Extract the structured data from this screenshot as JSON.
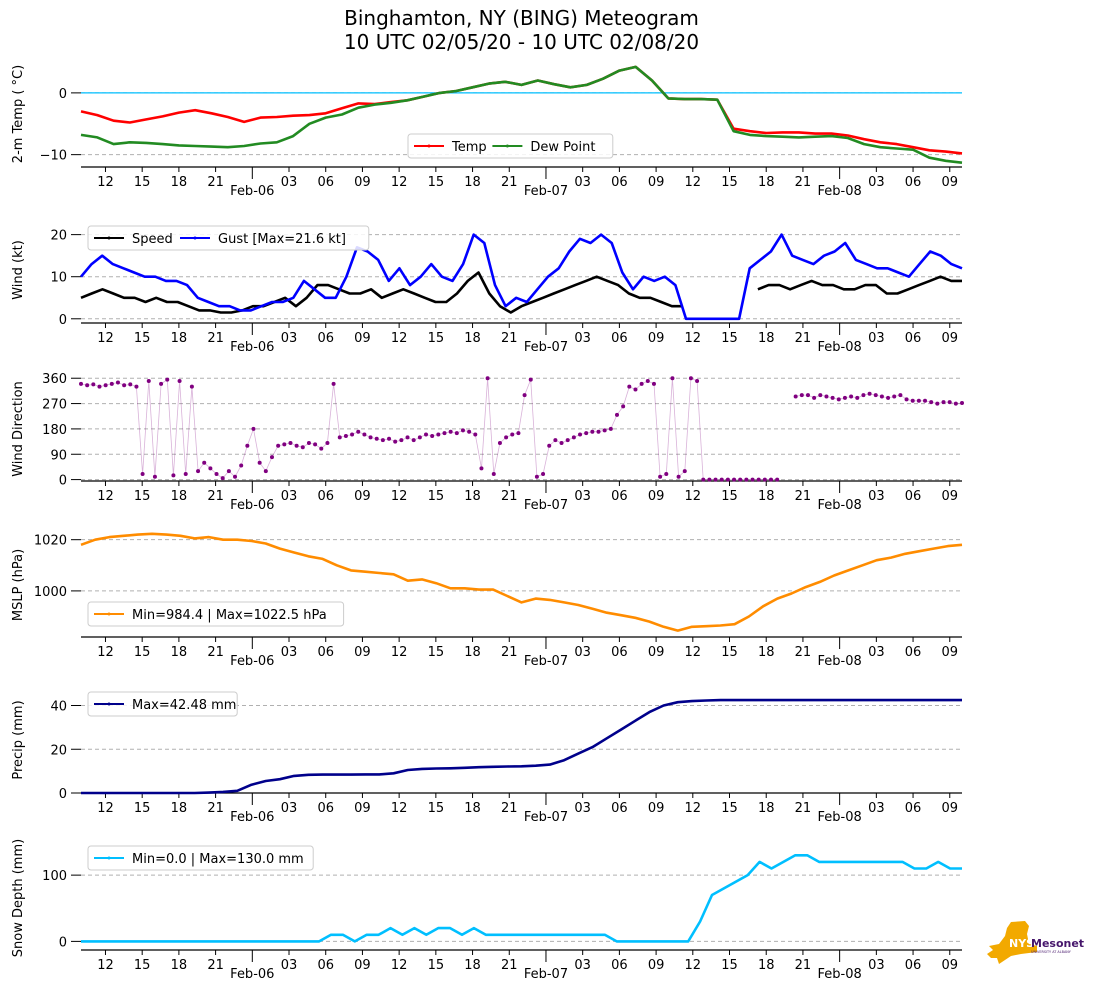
{
  "title": {
    "line1": "Binghamton, NY (BING) Meteogram",
    "line2": "10 UTC 02/05/20 - 10 UTC 02/08/20"
  },
  "logo": {
    "text_nys": "NYS",
    "text_mesonet": "Mesonet",
    "subtext": "UNIVERSITY AT ALBANY",
    "colors": {
      "state": "#f2a900",
      "brand": "#46166b"
    }
  },
  "chart_data": [
    {
      "id": "temp",
      "type": "line",
      "ylabel": "2-m Temp ( °C)",
      "ylim": [
        -12,
        5
      ],
      "yticks": [
        0,
        -10
      ],
      "grid": "horizontal-dashed",
      "reference_line": {
        "value": 0,
        "color": "#00bfff"
      },
      "legend": {
        "placement": "lower-center",
        "ncol": 2
      },
      "xlabel_hours_start": "10 UTC 02/05/20",
      "x_tick_labels": [
        "12",
        "15",
        "18",
        "21",
        "Feb-06",
        "03",
        "06",
        "09",
        "12",
        "15",
        "18",
        "21",
        "Feb-07",
        "03",
        "06",
        "09",
        "12",
        "15",
        "18",
        "21",
        "Feb-08",
        "03",
        "06",
        "09"
      ],
      "x_hours": [
        0,
        2,
        4,
        6,
        8,
        10,
        12,
        14,
        16,
        18,
        20,
        22,
        24,
        26,
        28,
        30,
        32,
        34,
        36,
        38,
        40,
        42,
        44,
        46,
        48,
        50,
        52,
        54,
        56,
        58,
        60,
        62,
        64,
        66,
        68,
        70,
        72
      ],
      "series": [
        {
          "name": "Temp",
          "color": "#ff0000",
          "values": [
            -3.0,
            -3.6,
            -4.5,
            -4.8,
            -4.3,
            -3.8,
            -3.2,
            -2.8,
            -3.3,
            -3.9,
            -4.7,
            -4.0,
            -3.9,
            -3.7,
            -3.6,
            -3.3,
            -2.5,
            -1.7,
            -1.8,
            -1.5,
            -1.2,
            -0.6,
            0.0,
            0.3,
            0.9,
            1.5,
            1.8,
            1.3,
            2.0,
            1.4,
            0.9,
            1.3,
            2.3,
            3.6,
            4.2,
            2.0,
            -0.9,
            -1.0,
            -1.0,
            -1.1,
            -5.8,
            -6.2,
            -6.5,
            -6.4,
            -6.4,
            -6.6,
            -6.6,
            -6.9,
            -7.5,
            -8.0,
            -8.3,
            -8.8,
            -9.3,
            -9.5,
            -9.8
          ]
        },
        {
          "name": "Dew Point",
          "color": "#228b22",
          "values": [
            -6.8,
            -7.2,
            -8.3,
            -8.0,
            -8.1,
            -8.3,
            -8.5,
            -8.6,
            -8.7,
            -8.8,
            -8.6,
            -8.2,
            -8.0,
            -7.0,
            -5.0,
            -4.0,
            -3.5,
            -2.4,
            -1.9,
            -1.6,
            -1.2,
            -0.6,
            0.0,
            0.3,
            0.9,
            1.5,
            1.8,
            1.3,
            2.0,
            1.4,
            0.9,
            1.3,
            2.3,
            3.6,
            4.2,
            2.0,
            -0.9,
            -1.0,
            -1.0,
            -1.1,
            -6.2,
            -6.8,
            -7.0,
            -7.1,
            -7.2,
            -7.1,
            -7.0,
            -7.3,
            -8.3,
            -8.8,
            -9.0,
            -9.2,
            -10.5,
            -11.0,
            -11.3
          ]
        }
      ]
    },
    {
      "id": "wind",
      "type": "line",
      "ylabel": "Wind (kt)",
      "ylim": [
        -1,
        23
      ],
      "yticks": [
        0,
        10,
        20
      ],
      "grid": "horizontal-dashed",
      "legend": {
        "placement": "top-left",
        "ncol": 2
      },
      "series": [
        {
          "name": "Speed",
          "color": "#000000",
          "values": [
            5,
            6,
            7,
            6,
            5,
            5,
            4,
            5,
            4,
            4,
            3,
            2,
            2,
            1.5,
            1.5,
            2,
            3,
            3,
            4,
            5,
            3,
            5,
            8,
            8,
            7,
            6,
            6,
            7,
            5,
            6,
            7,
            6,
            5,
            4,
            4,
            6,
            9,
            11,
            6,
            3,
            1.5,
            3,
            4,
            5,
            6,
            7,
            8,
            9,
            10,
            9,
            8,
            6,
            5,
            5,
            4,
            3,
            3,
            null,
            null,
            null,
            null,
            null,
            null,
            7,
            8,
            8,
            7,
            8,
            9,
            8,
            8,
            7,
            7,
            8,
            8,
            6,
            6,
            7,
            8,
            9,
            10,
            9,
            9
          ],
          "note": "sampled every ~0.9h; gap ~15-18 UTC Feb-07 where sensor reads 0"
        },
        {
          "name": "Gust [Max=21.6 kt]",
          "color": "#0000ff",
          "values": [
            10,
            13,
            15,
            13,
            12,
            11,
            10,
            10,
            9,
            9,
            8,
            5,
            4,
            3,
            3,
            2,
            2,
            3,
            4,
            4,
            5,
            9,
            7,
            5,
            5,
            10,
            17,
            16,
            14,
            9,
            12,
            8,
            10,
            13,
            10,
            9,
            13,
            20,
            18,
            8,
            3,
            5,
            4,
            7,
            10,
            12,
            16,
            19,
            18,
            20,
            18,
            11,
            7,
            10,
            9,
            10,
            8,
            0,
            0,
            0,
            0,
            0,
            0,
            12,
            14,
            16,
            20,
            15,
            14,
            13,
            15,
            16,
            18,
            14,
            13,
            12,
            12,
            11,
            10,
            13,
            16,
            15,
            13,
            12
          ],
          "max": 21.6
        }
      ]
    },
    {
      "id": "direction",
      "type": "scatter",
      "ylabel": "Wind Direction",
      "ylim": [
        -5,
        375
      ],
      "yticks": [
        0,
        90,
        180,
        270,
        360
      ],
      "grid": "horizontal-dashed",
      "series": [
        {
          "name": "Wind Direction",
          "color": "#800080",
          "values": [
            340,
            335,
            338,
            330,
            335,
            340,
            345,
            335,
            338,
            330,
            20,
            350,
            10,
            340,
            355,
            15,
            350,
            20,
            330,
            30,
            60,
            40,
            20,
            5,
            30,
            10,
            50,
            120,
            180,
            60,
            30,
            80,
            120,
            125,
            130,
            120,
            115,
            130,
            125,
            110,
            130,
            340,
            150,
            155,
            160,
            170,
            160,
            150,
            145,
            140,
            145,
            135,
            140,
            150,
            140,
            150,
            160,
            155,
            160,
            165,
            170,
            165,
            175,
            170,
            160,
            40,
            360,
            20,
            130,
            150,
            160,
            165,
            300,
            355,
            10,
            20,
            120,
            140,
            130,
            140,
            150,
            160,
            165,
            170,
            170,
            175,
            180,
            230,
            260,
            330,
            320,
            340,
            350,
            340,
            10,
            20,
            360,
            10,
            30,
            360,
            350,
            0,
            0,
            0,
            0,
            0,
            0,
            0,
            0,
            0,
            0,
            0,
            0,
            0,
            null,
            null,
            295,
            300,
            300,
            290,
            300,
            295,
            290,
            285,
            290,
            295,
            290,
            300,
            305,
            300,
            295,
            290,
            295,
            300,
            285,
            280,
            280,
            280,
            275,
            270,
            275,
            275,
            270,
            272
          ]
        }
      ]
    },
    {
      "id": "mslp",
      "type": "line",
      "ylabel": "MSLP (hPa)",
      "ylim": [
        982,
        1023
      ],
      "yticks": [
        1000,
        1020
      ],
      "grid": "horizontal-dashed",
      "legend": {
        "placement": "lower-left"
      },
      "series": [
        {
          "name": "Min=984.4 | Max=1022.5 hPa",
          "color": "#ff8c00",
          "min": 984.4,
          "max": 1022.5,
          "values": [
            1018,
            1020,
            1021,
            1021.5,
            1022,
            1022.3,
            1022,
            1021.5,
            1020.5,
            1021,
            1020,
            1020,
            1019.5,
            1018.5,
            1016.5,
            1015,
            1013.5,
            1012.5,
            1010,
            1008,
            1007.5,
            1007,
            1006.5,
            1004,
            1004.5,
            1003,
            1001,
            1001,
            1000.5,
            1000.5,
            998,
            995.5,
            997,
            996.5,
            995.5,
            994.5,
            993,
            991.5,
            990.5,
            989.5,
            988,
            986,
            984.5,
            986,
            986.2,
            986.5,
            987,
            990,
            994,
            997,
            999,
            1001.5,
            1003.5,
            1006,
            1008,
            1010,
            1012,
            1013,
            1014.5,
            1015.5,
            1016.5,
            1017.5,
            1018
          ]
        }
      ]
    },
    {
      "id": "precip",
      "type": "line",
      "ylabel": "Precip (mm)",
      "ylim": [
        0,
        48
      ],
      "yticks": [
        0,
        20,
        40
      ],
      "grid": "horizontal-dashed",
      "legend": {
        "placement": "top-left"
      },
      "series": [
        {
          "name": "Max=42.48 mm",
          "color": "#00008b",
          "max": 42.48,
          "values": [
            0,
            0,
            0,
            0,
            0,
            0,
            0,
            0,
            0,
            0.2,
            0.5,
            1,
            3.8,
            5.5,
            6.3,
            7.8,
            8.3,
            8.4,
            8.4,
            8.4,
            8.5,
            8.5,
            9,
            10.5,
            11,
            11.2,
            11.3,
            11.5,
            11.8,
            12,
            12.1,
            12.2,
            12.5,
            13,
            15,
            18,
            21,
            25,
            29,
            33,
            37,
            40,
            41.5,
            42,
            42.3,
            42.48,
            42.48,
            42.48,
            42.48,
            42.48,
            42.48,
            42.48,
            42.48,
            42.48,
            42.48,
            42.48,
            42.48,
            42.48,
            42.48,
            42.48,
            42.48,
            42.48,
            42.48
          ]
        }
      ]
    },
    {
      "id": "snow",
      "type": "line",
      "ylabel": "Snow Depth (mm)",
      "ylim": [
        -13,
        150
      ],
      "yticks": [
        0,
        100
      ],
      "grid": "horizontal-dashed",
      "legend": {
        "placement": "top-left"
      },
      "series": [
        {
          "name": "Min=0.0 | Max=130.0 mm",
          "color": "#00bfff",
          "min": 0.0,
          "max": 130.0,
          "values": [
            0,
            0,
            0,
            0,
            0,
            0,
            0,
            0,
            0,
            0,
            0,
            0,
            0,
            0,
            0,
            0,
            0,
            0,
            0,
            0,
            0,
            10,
            10,
            0,
            10,
            10,
            20,
            10,
            20,
            10,
            20,
            20,
            10,
            20,
            10,
            10,
            10,
            10,
            10,
            10,
            10,
            10,
            10,
            10,
            10,
            0,
            0,
            0,
            0,
            0,
            0,
            0,
            30,
            70,
            80,
            90,
            100,
            120,
            110,
            120,
            130,
            130,
            120,
            120,
            120,
            120,
            120,
            120,
            120,
            120,
            110,
            110,
            120,
            110,
            110
          ]
        }
      ]
    }
  ]
}
